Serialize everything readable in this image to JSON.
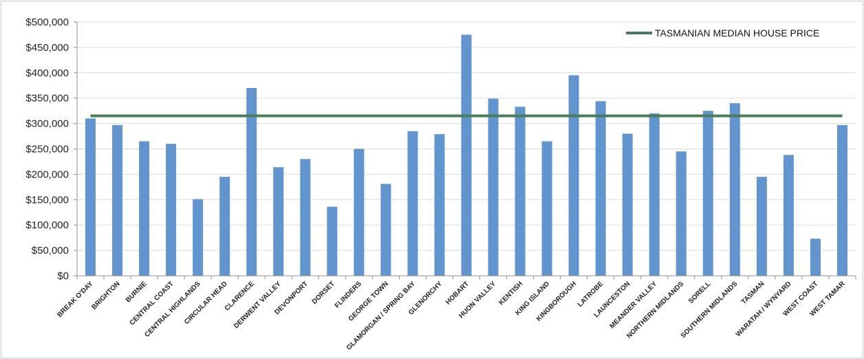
{
  "chart_data": {
    "type": "bar",
    "title": "",
    "xlabel": "",
    "ylabel": "",
    "ylim": [
      0,
      500000
    ],
    "ytick_step": 50000,
    "ytick_prefix": "$",
    "grid": true,
    "legend_position": "top-right",
    "categories": [
      "BREAK O'DAY",
      "BRIGHTON",
      "BURNIE",
      "CENTRAL COAST",
      "CENTRAL HIGHLANDS",
      "CIRCULAR HEAD",
      "CLARENCE",
      "DERWENT VALLEY",
      "DEVONPORT",
      "DORSET",
      "FLINDERS",
      "GEORGE TOWN",
      "GLAMORGAN / SPRING BAY",
      "GLENORCHY",
      "HOBART",
      "HUON VALLEY",
      "KENTISH",
      "KING ISLAND",
      "KINGBOROUGH",
      "LATROBE",
      "LAUNCESTON",
      "MEANDER VALLEY",
      "NORTHERN MIDLANDS",
      "SORELL",
      "SOUTHERN MIDLANDS",
      "TASMAN",
      "WARATAH / WYNYARD",
      "WEST COAST",
      "WEST TAMAR"
    ],
    "series": [
      {
        "type": "bar",
        "color": "#6295cd",
        "values": [
          310000,
          297000,
          265000,
          260000,
          151000,
          195000,
          370000,
          214000,
          230000,
          136000,
          250000,
          181000,
          285000,
          279000,
          475000,
          349000,
          333000,
          265000,
          395000,
          344000,
          280000,
          320000,
          245000,
          325000,
          340000,
          195000,
          238000,
          73000,
          297000
        ]
      },
      {
        "type": "line",
        "name": "TASMANIAN MEDIAN HOUSE PRICE",
        "color": "#4a7c59",
        "value": 315000
      }
    ]
  }
}
